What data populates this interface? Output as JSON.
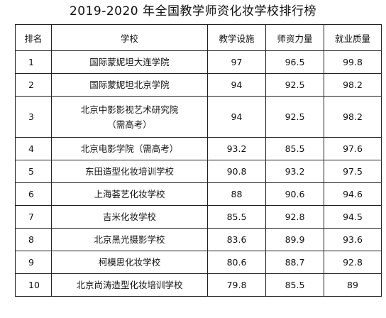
{
  "title": "2019-2020 年全国教学师资化妆学校排行榜",
  "headers": {
    "rank": "排名",
    "school": "学校",
    "teaching": "教学设施",
    "faculty": "师资力量",
    "employment": "就业质量"
  },
  "rows": [
    {
      "rank": "1",
      "school_lines": [
        "国际蒙妮坦大连学院"
      ],
      "teaching": "97",
      "faculty": "96.5",
      "employment": "99.8"
    },
    {
      "rank": "2",
      "school_lines": [
        "国际蒙妮坦北京学院"
      ],
      "teaching": "94",
      "faculty": "92.5",
      "employment": "98.2"
    },
    {
      "rank": "3",
      "school_lines": [
        "北京中影影视艺术研究院",
        "（需高考）"
      ],
      "teaching": "94",
      "faculty": "92.5",
      "employment": "98.2"
    },
    {
      "rank": "4",
      "school_lines": [
        "北京电影学院（需高考）"
      ],
      "teaching": "93.2",
      "faculty": "85.5",
      "employment": "97.6"
    },
    {
      "rank": "5",
      "school_lines": [
        "东田造型化妆培训学校"
      ],
      "teaching": "90.8",
      "faculty": "93.2",
      "employment": "97.5"
    },
    {
      "rank": "6",
      "school_lines": [
        "上海荟艺化妆学校"
      ],
      "teaching": "88",
      "faculty": "90.6",
      "employment": "94.6"
    },
    {
      "rank": "7",
      "school_lines": [
        "吉米化妆学校"
      ],
      "teaching": "85.5",
      "faculty": "92.8",
      "employment": "94.5"
    },
    {
      "rank": "8",
      "school_lines": [
        "北京黑光摄影学校"
      ],
      "teaching": "83.6",
      "faculty": "89.9",
      "employment": "93.6"
    },
    {
      "rank": "9",
      "school_lines": [
        "柯模思化妆学校"
      ],
      "teaching": "80.6",
      "faculty": "88.7",
      "employment": "92.8"
    },
    {
      "rank": "10",
      "school_lines": [
        "北京尚涛造型化妆培训学校"
      ],
      "teaching": "79.8",
      "faculty": "85.5",
      "employment": "89"
    }
  ]
}
